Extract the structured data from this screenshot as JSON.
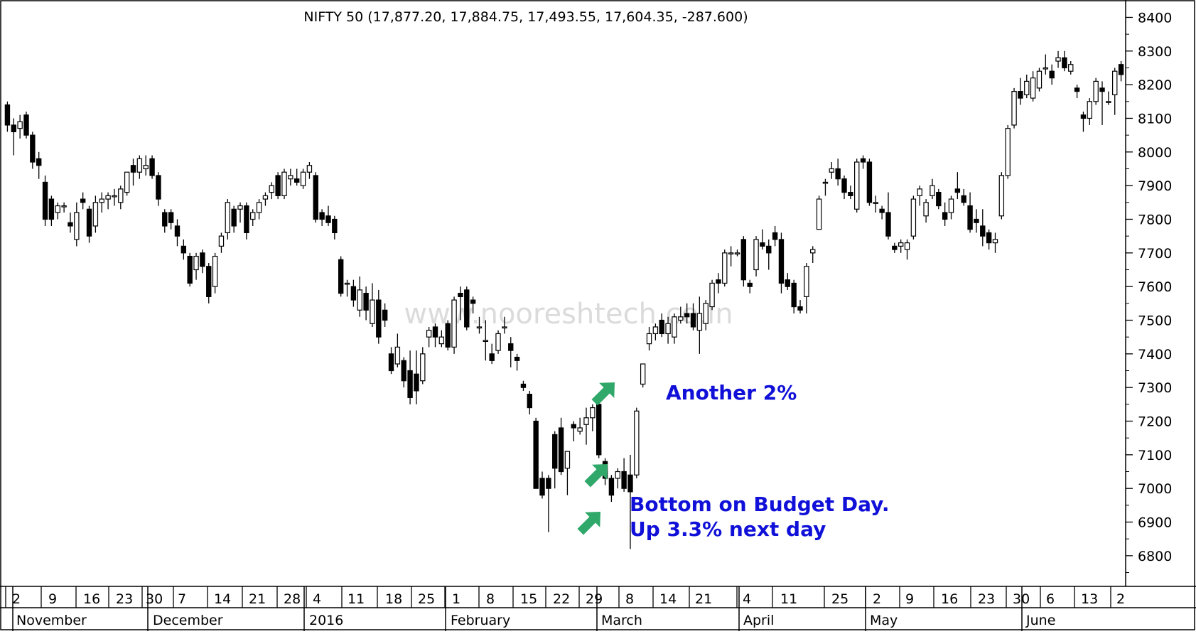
{
  "chart_data": {
    "type": "candlestick",
    "title": "NIFTY 50 (17,877.20, 17,884.75, 17,493.55, 17,604.35, -287.600)",
    "watermark": "www.nooreshtech.co.in",
    "ylim": [
      6730,
      8420
    ],
    "y_ticks": [
      6800,
      6900,
      7000,
      7100,
      7200,
      7300,
      7400,
      7500,
      7600,
      7700,
      7800,
      7900,
      8000,
      8100,
      8200,
      8300,
      8400
    ],
    "y_axis_position": "right",
    "grid": false,
    "up_color": "#ffffff",
    "down_color": "#000000",
    "arrow_color": "#2fa86a",
    "annotation_color": "#1010d8",
    "date_labels": [
      "2",
      "9",
      "16",
      "23",
      "30",
      "7",
      "14",
      "21",
      "28",
      "4",
      "11",
      "18",
      "25",
      "1",
      "8",
      "15",
      "22",
      "29",
      "8",
      "14",
      "21",
      "4",
      "11",
      "25",
      "2",
      "9",
      "16",
      "23",
      "30",
      "6",
      "13",
      "2"
    ],
    "months": [
      "November",
      "December",
      "2016",
      "February",
      "March",
      "April",
      "May",
      "June"
    ],
    "annotations": [
      {
        "text": "Another 2%",
        "x_index": 137
      },
      {
        "text": "Bottom on Budget Day.",
        "x_index": 136
      },
      {
        "text": "Up 3.3% next day",
        "x_index": 136
      }
    ],
    "ohlc": [
      [
        8140,
        8150,
        8060,
        8080
      ],
      [
        8080,
        8100,
        7990,
        8060
      ],
      [
        8070,
        8110,
        8040,
        8090
      ],
      [
        8110,
        8120,
        8040,
        8050
      ],
      [
        8050,
        8060,
        7950,
        7970
      ],
      [
        7980,
        8000,
        7920,
        7960
      ],
      [
        7910,
        7930,
        7780,
        7800
      ],
      [
        7860,
        7870,
        7780,
        7800
      ],
      [
        7820,
        7850,
        7800,
        7840
      ],
      [
        7840,
        7850,
        7820,
        7840
      ],
      [
        7790,
        7820,
        7760,
        7780
      ],
      [
        7740,
        7850,
        7720,
        7820
      ],
      [
        7860,
        7880,
        7830,
        7850
      ],
      [
        7830,
        7840,
        7730,
        7750
      ],
      [
        7780,
        7870,
        7760,
        7850
      ],
      [
        7850,
        7880,
        7820,
        7860
      ],
      [
        7860,
        7880,
        7830,
        7870
      ],
      [
        7870,
        7890,
        7840,
        7870
      ],
      [
        7850,
        7900,
        7830,
        7890
      ],
      [
        7880,
        7940,
        7870,
        7940
      ],
      [
        7960,
        7980,
        7900,
        7940
      ],
      [
        7940,
        7990,
        7920,
        7980
      ],
      [
        7950,
        7990,
        7930,
        7960
      ],
      [
        7980,
        7990,
        7920,
        7930
      ],
      [
        7930,
        7940,
        7840,
        7860
      ],
      [
        7820,
        7830,
        7760,
        7780
      ],
      [
        7820,
        7830,
        7770,
        7790
      ],
      [
        7780,
        7800,
        7720,
        7750
      ],
      [
        7720,
        7740,
        7680,
        7700
      ],
      [
        7690,
        7700,
        7600,
        7610
      ],
      [
        7650,
        7700,
        7620,
        7690
      ],
      [
        7700,
        7710,
        7640,
        7660
      ],
      [
        7660,
        7670,
        7550,
        7570
      ],
      [
        7600,
        7700,
        7580,
        7690
      ],
      [
        7720,
        7760,
        7700,
        7750
      ],
      [
        7760,
        7860,
        7740,
        7850
      ],
      [
        7830,
        7840,
        7760,
        7780
      ],
      [
        7830,
        7850,
        7790,
        7840
      ],
      [
        7840,
        7850,
        7740,
        7760
      ],
      [
        7800,
        7830,
        7780,
        7820
      ],
      [
        7820,
        7860,
        7800,
        7850
      ],
      [
        7860,
        7880,
        7840,
        7870
      ],
      [
        7880,
        7910,
        7860,
        7900
      ],
      [
        7930,
        7940,
        7860,
        7870
      ],
      [
        7870,
        7950,
        7860,
        7940
      ],
      [
        7920,
        7950,
        7900,
        7930
      ],
      [
        7920,
        7950,
        7900,
        7910
      ],
      [
        7900,
        7950,
        7890,
        7940
      ],
      [
        7940,
        7970,
        7920,
        7960
      ],
      [
        7930,
        7940,
        7790,
        7800
      ],
      [
        7820,
        7830,
        7780,
        7800
      ],
      [
        7810,
        7840,
        7780,
        7790
      ],
      [
        7800,
        7810,
        7740,
        7760
      ],
      [
        7680,
        7690,
        7570,
        7580
      ],
      [
        7610,
        7620,
        7570,
        7610
      ],
      [
        7600,
        7620,
        7540,
        7560
      ],
      [
        7530,
        7630,
        7510,
        7590
      ],
      [
        7580,
        7600,
        7500,
        7530
      ],
      [
        7490,
        7610,
        7480,
        7560
      ],
      [
        7560,
        7590,
        7430,
        7450
      ],
      [
        7530,
        7550,
        7480,
        7500
      ],
      [
        7400,
        7420,
        7340,
        7350
      ],
      [
        7370,
        7460,
        7360,
        7420
      ],
      [
        7380,
        7390,
        7300,
        7320
      ],
      [
        7350,
        7410,
        7250,
        7270
      ],
      [
        7340,
        7410,
        7250,
        7290
      ],
      [
        7320,
        7420,
        7310,
        7400
      ],
      [
        7450,
        7480,
        7420,
        7470
      ],
      [
        7480,
        7490,
        7420,
        7450
      ],
      [
        7430,
        7470,
        7420,
        7450
      ],
      [
        7490,
        7500,
        7410,
        7420
      ],
      [
        7420,
        7570,
        7400,
        7560
      ],
      [
        7580,
        7600,
        7500,
        7570
      ],
      [
        7590,
        7600,
        7470,
        7480
      ],
      [
        7560,
        7570,
        7520,
        7550
      ],
      [
        7480,
        7510,
        7460,
        7480
      ],
      [
        7440,
        7500,
        7380,
        7440
      ],
      [
        7400,
        7430,
        7370,
        7380
      ],
      [
        7410,
        7470,
        7400,
        7460
      ],
      [
        7480,
        7510,
        7460,
        7480
      ],
      [
        7430,
        7450,
        7360,
        7410
      ],
      [
        7390,
        7400,
        7350,
        7380
      ],
      [
        7310,
        7320,
        7290,
        7300
      ],
      [
        7280,
        7290,
        7220,
        7240
      ],
      [
        7200,
        7210,
        7000,
        7000
      ],
      [
        7030,
        7050,
        6970,
        6980
      ],
      [
        7030,
        7040,
        6870,
        7000
      ],
      [
        7160,
        7170,
        7000,
        7060
      ],
      [
        7180,
        7210,
        7040,
        7050
      ],
      [
        7060,
        7110,
        6980,
        7110
      ],
      [
        7190,
        7200,
        7140,
        7180
      ],
      [
        7170,
        7210,
        7160,
        7180
      ],
      [
        7190,
        7240,
        7130,
        7210
      ],
      [
        7210,
        7250,
        7170,
        7240
      ],
      [
        7250,
        7260,
        7090,
        7100
      ],
      [
        7080,
        7090,
        7010,
        7030
      ],
      [
        7030,
        7040,
        6960,
        6980
      ],
      [
        7030,
        7060,
        7000,
        7050
      ],
      [
        7050,
        7090,
        6990,
        7000
      ],
      [
        7040,
        7100,
        6820,
        6990
      ],
      [
        7040,
        7240,
        7030,
        7230
      ],
      [
        7310,
        7370,
        7300,
        7370
      ],
      [
        7430,
        7480,
        7410,
        7460
      ],
      [
        7460,
        7490,
        7440,
        7480
      ],
      [
        7500,
        7520,
        7450,
        7460
      ],
      [
        7460,
        7510,
        7430,
        7490
      ],
      [
        7450,
        7520,
        7430,
        7510
      ],
      [
        7500,
        7540,
        7490,
        7510
      ],
      [
        7520,
        7550,
        7490,
        7510
      ],
      [
        7520,
        7550,
        7470,
        7480
      ],
      [
        7470,
        7570,
        7400,
        7520
      ],
      [
        7490,
        7560,
        7470,
        7550
      ],
      [
        7540,
        7620,
        7530,
        7610
      ],
      [
        7620,
        7640,
        7580,
        7610
      ],
      [
        7610,
        7710,
        7600,
        7700
      ],
      [
        7700,
        7720,
        7660,
        7700
      ],
      [
        7700,
        7710,
        7690,
        7700
      ],
      [
        7740,
        7750,
        7600,
        7620
      ],
      [
        7610,
        7620,
        7580,
        7600
      ],
      [
        7650,
        7750,
        7630,
        7740
      ],
      [
        7730,
        7770,
        7710,
        7720
      ],
      [
        7720,
        7740,
        7650,
        7700
      ],
      [
        7760,
        7780,
        7720,
        7740
      ],
      [
        7740,
        7760,
        7580,
        7610
      ],
      [
        7620,
        7640,
        7590,
        7600
      ],
      [
        7610,
        7620,
        7520,
        7540
      ],
      [
        7540,
        7560,
        7520,
        7530
      ],
      [
        7570,
        7670,
        7520,
        7660
      ],
      [
        7700,
        7720,
        7670,
        7710
      ],
      [
        7770,
        7870,
        7770,
        7860
      ],
      [
        7910,
        7920,
        7870,
        7910
      ],
      [
        7940,
        7970,
        7920,
        7950
      ],
      [
        7950,
        7980,
        7900,
        7920
      ],
      [
        7920,
        7930,
        7860,
        7880
      ],
      [
        7880,
        7900,
        7860,
        7870
      ],
      [
        7830,
        7980,
        7820,
        7970
      ],
      [
        7980,
        7990,
        7950,
        7970
      ],
      [
        7970,
        7980,
        7840,
        7850
      ],
      [
        7850,
        7870,
        7820,
        7850
      ],
      [
        7830,
        7840,
        7800,
        7820
      ],
      [
        7820,
        7880,
        7740,
        7750
      ],
      [
        7720,
        7730,
        7700,
        7710
      ],
      [
        7720,
        7740,
        7700,
        7730
      ],
      [
        7710,
        7740,
        7680,
        7730
      ],
      [
        7750,
        7870,
        7740,
        7860
      ],
      [
        7870,
        7900,
        7840,
        7890
      ],
      [
        7810,
        7860,
        7790,
        7850
      ],
      [
        7870,
        7920,
        7860,
        7900
      ],
      [
        7880,
        7890,
        7830,
        7840
      ],
      [
        7820,
        7850,
        7780,
        7800
      ],
      [
        7820,
        7870,
        7800,
        7860
      ],
      [
        7890,
        7940,
        7860,
        7880
      ],
      [
        7870,
        7890,
        7840,
        7850
      ],
      [
        7840,
        7880,
        7760,
        7770
      ],
      [
        7800,
        7830,
        7760,
        7790
      ],
      [
        7780,
        7830,
        7720,
        7750
      ],
      [
        7760,
        7770,
        7710,
        7730
      ],
      [
        7730,
        7760,
        7700,
        7740
      ],
      [
        7810,
        7940,
        7800,
        7930
      ],
      [
        7930,
        8080,
        7920,
        8070
      ],
      [
        8080,
        8190,
        8070,
        8180
      ],
      [
        8180,
        8220,
        8140,
        8160
      ],
      [
        8170,
        8230,
        8160,
        8210
      ],
      [
        8160,
        8240,
        8150,
        8220
      ],
      [
        8190,
        8250,
        8180,
        8240
      ],
      [
        8250,
        8290,
        8230,
        8250
      ],
      [
        8240,
        8260,
        8200,
        8220
      ],
      [
        8270,
        8300,
        8250,
        8280
      ],
      [
        8280,
        8300,
        8240,
        8250
      ],
      [
        8240,
        8270,
        8230,
        8260
      ],
      [
        8190,
        8200,
        8160,
        8180
      ],
      [
        8110,
        8120,
        8060,
        8100
      ],
      [
        8100,
        8160,
        8080,
        8150
      ],
      [
        8150,
        8220,
        8140,
        8210
      ],
      [
        8190,
        8210,
        8080,
        8180
      ],
      [
        8150,
        8180,
        8140,
        8150
      ],
      [
        8170,
        8250,
        8110,
        8240
      ],
      [
        8260,
        8270,
        8210,
        8230
      ]
    ]
  }
}
